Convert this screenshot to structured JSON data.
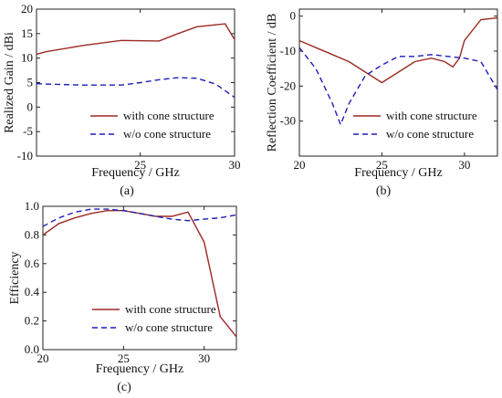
{
  "colors": {
    "with": "#9b2a22",
    "without": "#1c1cb8",
    "axis": "#222222"
  },
  "chart_data": [
    {
      "type": "line",
      "panel_label": "(a)",
      "xlabel": "Frequency / GHz",
      "ylabel": "Realized Gain / dBi",
      "xlim": [
        19.5,
        30
      ],
      "ylim": [
        -10,
        20
      ],
      "xticks": [
        25,
        30
      ],
      "yticks": [
        -10,
        -5,
        0,
        5,
        10,
        15,
        20
      ],
      "legend_position": "bottom-right",
      "series": [
        {
          "name": "with cone structure",
          "style": "solid",
          "x": [
            19.5,
            20,
            22,
            24,
            26,
            27,
            28,
            29,
            29.5,
            30
          ],
          "y": [
            10.8,
            11.3,
            12.6,
            13.6,
            13.5,
            15.0,
            16.4,
            16.8,
            17.0,
            13.8
          ]
        },
        {
          "name": "w/o cone structure",
          "style": "dashed",
          "x": [
            19.5,
            20,
            22,
            24,
            25,
            26,
            27,
            28,
            29,
            30
          ],
          "y": [
            4.8,
            4.7,
            4.5,
            4.5,
            5.0,
            5.6,
            6.0,
            5.9,
            4.7,
            2.0
          ]
        }
      ]
    },
    {
      "type": "line",
      "panel_label": "(b)",
      "xlabel": "Frequency / GHz",
      "ylabel": "Reflection Coefficient / dB",
      "xlim": [
        20,
        32
      ],
      "ylim": [
        -40,
        2
      ],
      "xticks": [
        20,
        25,
        30
      ],
      "yticks": [
        -30,
        -20,
        -10,
        0
      ],
      "legend_position": "bottom-right",
      "series": [
        {
          "name": "with cone structure",
          "style": "solid",
          "x": [
            20,
            21,
            22,
            23,
            24,
            25,
            26,
            27,
            28,
            28.8,
            29.3,
            29.7,
            30,
            31,
            32
          ],
          "y": [
            -7,
            -9,
            -11,
            -13,
            -16,
            -19,
            -16,
            -13,
            -12,
            -13,
            -14.5,
            -12,
            -7,
            -1,
            -0.5
          ]
        },
        {
          "name": "w/o cone structure",
          "style": "dashed",
          "x": [
            20,
            21,
            22,
            22.5,
            23,
            24,
            25,
            26,
            27,
            28,
            29,
            30,
            31,
            32
          ],
          "y": [
            -9,
            -15,
            -25,
            -31,
            -25,
            -17,
            -14,
            -11.5,
            -11.5,
            -11,
            -11.5,
            -12,
            -13,
            -21
          ]
        }
      ]
    },
    {
      "type": "line",
      "panel_label": "(c)",
      "xlabel": "Frequency / GHz",
      "ylabel": "Efficiency",
      "xlim": [
        20,
        32
      ],
      "ylim": [
        0,
        1
      ],
      "xticks": [
        20,
        25,
        30
      ],
      "yticks": [
        0.0,
        0.2,
        0.4,
        0.6,
        0.8,
        1.0
      ],
      "legend_position": "bottom-right",
      "series": [
        {
          "name": "with cone structure",
          "style": "solid",
          "x": [
            20,
            21,
            22,
            23,
            24,
            25,
            26,
            27,
            28,
            29,
            30,
            31,
            32
          ],
          "y": [
            0.8,
            0.88,
            0.92,
            0.95,
            0.97,
            0.97,
            0.95,
            0.93,
            0.93,
            0.96,
            0.75,
            0.23,
            0.09
          ]
        },
        {
          "name": "w/o cone structure",
          "style": "dashed",
          "x": [
            20,
            21,
            22,
            23,
            24,
            25,
            26,
            27,
            28,
            29,
            30,
            31,
            32
          ],
          "y": [
            0.86,
            0.92,
            0.96,
            0.98,
            0.98,
            0.97,
            0.95,
            0.93,
            0.91,
            0.9,
            0.91,
            0.92,
            0.94
          ]
        }
      ]
    }
  ]
}
